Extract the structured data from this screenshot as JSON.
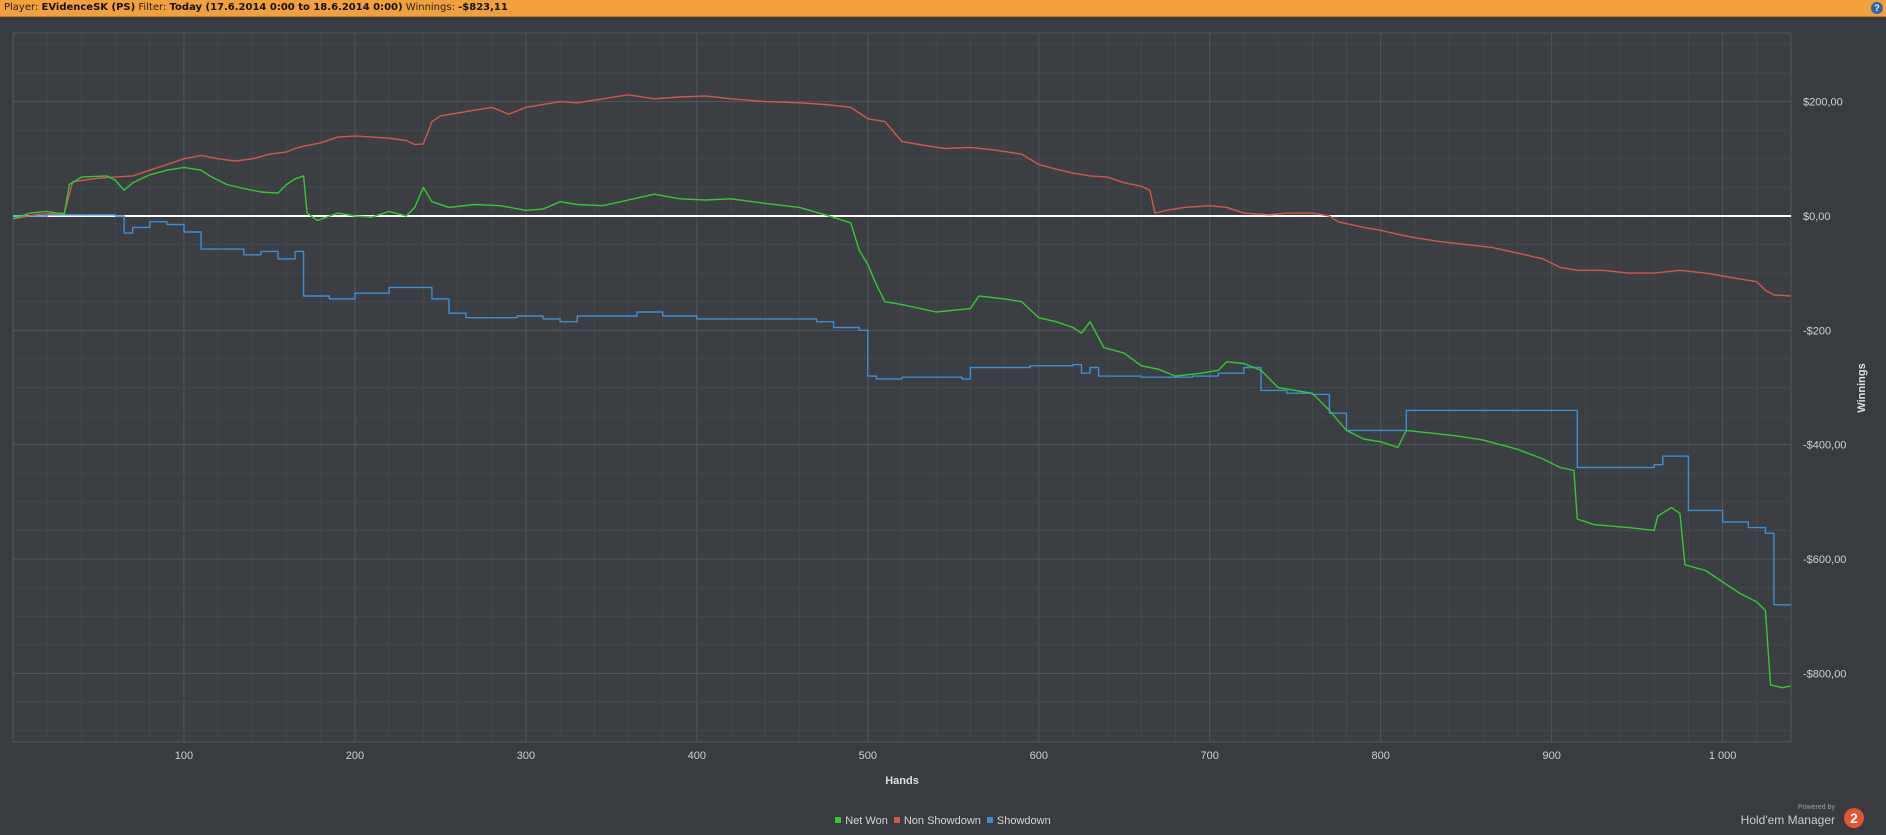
{
  "header": {
    "player_label": "Player:",
    "player_value": "EVidenceSK (PS)",
    "filter_label": "Filter:",
    "filter_value": "Today (17.6.2014 0:00 to 18.6.2014 0:00)",
    "winnings_label": "Winnings:",
    "winnings_value": "-$823,11",
    "help_icon": "?"
  },
  "brand": {
    "powered_by": "Powered by",
    "name": "Hold'em Manager",
    "logo": "2"
  },
  "colors": {
    "net_won": "#2ecc2e",
    "non_showdown": "#d9534f",
    "showdown": "#3a8fd6",
    "background": "#383b3f",
    "zero_line": "#ffffff"
  },
  "chart_data": {
    "type": "line",
    "title": "",
    "xlabel": "Hands",
    "ylabel": "Winnings",
    "xlim": [
      0,
      1040
    ],
    "ylim": [
      -920,
      320
    ],
    "grid": true,
    "legend_position": "bottom",
    "x_ticks": [
      100,
      200,
      300,
      400,
      500,
      600,
      700,
      800,
      900,
      1000
    ],
    "x_tick_labels": [
      "100",
      "200",
      "300",
      "400",
      "500",
      "600",
      "700",
      "800",
      "900",
      "1 000"
    ],
    "y_ticks": [
      200,
      0,
      -200,
      -400,
      -600,
      -800
    ],
    "y_tick_labels": [
      "$200,00",
      "$0,00",
      "-$200",
      "-$400,00",
      "-$600,00",
      "-$800,00"
    ],
    "series": [
      {
        "name": "Net Won",
        "step": false,
        "points": [
          [
            0,
            -5
          ],
          [
            10,
            5
          ],
          [
            20,
            8
          ],
          [
            30,
            3
          ],
          [
            33,
            55
          ],
          [
            40,
            68
          ],
          [
            55,
            70
          ],
          [
            60,
            62
          ],
          [
            65,
            45
          ],
          [
            70,
            58
          ],
          [
            80,
            72
          ],
          [
            90,
            80
          ],
          [
            100,
            85
          ],
          [
            110,
            80
          ],
          [
            115,
            70
          ],
          [
            125,
            55
          ],
          [
            135,
            48
          ],
          [
            145,
            42
          ],
          [
            155,
            40
          ],
          [
            160,
            55
          ],
          [
            165,
            65
          ],
          [
            170,
            70
          ],
          [
            172,
            5
          ],
          [
            178,
            -8
          ],
          [
            190,
            5
          ],
          [
            200,
            0
          ],
          [
            210,
            -2
          ],
          [
            220,
            8
          ],
          [
            230,
            0
          ],
          [
            235,
            15
          ],
          [
            240,
            50
          ],
          [
            245,
            25
          ],
          [
            255,
            15
          ],
          [
            270,
            20
          ],
          [
            285,
            18
          ],
          [
            300,
            10
          ],
          [
            310,
            12
          ],
          [
            320,
            25
          ],
          [
            330,
            20
          ],
          [
            345,
            18
          ],
          [
            360,
            28
          ],
          [
            375,
            38
          ],
          [
            390,
            30
          ],
          [
            405,
            28
          ],
          [
            420,
            30
          ],
          [
            440,
            22
          ],
          [
            460,
            15
          ],
          [
            475,
            2
          ],
          [
            490,
            -12
          ],
          [
            495,
            -60
          ],
          [
            500,
            -85
          ],
          [
            505,
            -120
          ],
          [
            510,
            -150
          ],
          [
            520,
            -155
          ],
          [
            540,
            -168
          ],
          [
            560,
            -162
          ],
          [
            565,
            -140
          ],
          [
            580,
            -145
          ],
          [
            590,
            -150
          ],
          [
            600,
            -178
          ],
          [
            610,
            -185
          ],
          [
            620,
            -195
          ],
          [
            625,
            -205
          ],
          [
            630,
            -185
          ],
          [
            638,
            -230
          ],
          [
            650,
            -240
          ],
          [
            660,
            -262
          ],
          [
            670,
            -268
          ],
          [
            680,
            -280
          ],
          [
            695,
            -275
          ],
          [
            705,
            -270
          ],
          [
            710,
            -255
          ],
          [
            720,
            -258
          ],
          [
            730,
            -270
          ],
          [
            740,
            -300
          ],
          [
            750,
            -305
          ],
          [
            760,
            -310
          ],
          [
            770,
            -340
          ],
          [
            780,
            -375
          ],
          [
            790,
            -390
          ],
          [
            800,
            -395
          ],
          [
            810,
            -405
          ],
          [
            815,
            -375
          ],
          [
            830,
            -380
          ],
          [
            845,
            -385
          ],
          [
            860,
            -392
          ],
          [
            880,
            -408
          ],
          [
            895,
            -425
          ],
          [
            905,
            -440
          ],
          [
            913,
            -445
          ],
          [
            915,
            -530
          ],
          [
            925,
            -540
          ],
          [
            945,
            -545
          ],
          [
            960,
            -550
          ],
          [
            962,
            -525
          ],
          [
            970,
            -510
          ],
          [
            975,
            -520
          ],
          [
            978,
            -610
          ],
          [
            990,
            -620
          ],
          [
            1000,
            -640
          ],
          [
            1010,
            -660
          ],
          [
            1020,
            -675
          ],
          [
            1025,
            -690
          ],
          [
            1028,
            -820
          ],
          [
            1035,
            -825
          ],
          [
            1040,
            -822
          ]
        ]
      },
      {
        "name": "Non Showdown",
        "step": false,
        "points": [
          [
            0,
            -5
          ],
          [
            15,
            3
          ],
          [
            30,
            5
          ],
          [
            35,
            60
          ],
          [
            50,
            66
          ],
          [
            70,
            70
          ],
          [
            80,
            80
          ],
          [
            90,
            90
          ],
          [
            100,
            100
          ],
          [
            110,
            106
          ],
          [
            120,
            100
          ],
          [
            130,
            96
          ],
          [
            140,
            100
          ],
          [
            150,
            108
          ],
          [
            160,
            112
          ],
          [
            165,
            118
          ],
          [
            170,
            122
          ],
          [
            180,
            128
          ],
          [
            190,
            138
          ],
          [
            200,
            140
          ],
          [
            210,
            138
          ],
          [
            220,
            136
          ],
          [
            230,
            132
          ],
          [
            235,
            125
          ],
          [
            240,
            126
          ],
          [
            245,
            165
          ],
          [
            250,
            175
          ],
          [
            260,
            180
          ],
          [
            270,
            185
          ],
          [
            280,
            190
          ],
          [
            290,
            178
          ],
          [
            300,
            190
          ],
          [
            310,
            195
          ],
          [
            320,
            200
          ],
          [
            330,
            198
          ],
          [
            345,
            205
          ],
          [
            360,
            212
          ],
          [
            375,
            205
          ],
          [
            390,
            208
          ],
          [
            405,
            210
          ],
          [
            420,
            205
          ],
          [
            440,
            200
          ],
          [
            460,
            198
          ],
          [
            475,
            195
          ],
          [
            490,
            190
          ],
          [
            495,
            180
          ],
          [
            500,
            170
          ],
          [
            510,
            165
          ],
          [
            520,
            130
          ],
          [
            530,
            125
          ],
          [
            545,
            118
          ],
          [
            560,
            120
          ],
          [
            575,
            115
          ],
          [
            590,
            108
          ],
          [
            600,
            90
          ],
          [
            610,
            82
          ],
          [
            620,
            75
          ],
          [
            630,
            70
          ],
          [
            640,
            68
          ],
          [
            650,
            58
          ],
          [
            660,
            52
          ],
          [
            665,
            45
          ],
          [
            668,
            5
          ],
          [
            675,
            10
          ],
          [
            685,
            15
          ],
          [
            700,
            18
          ],
          [
            710,
            15
          ],
          [
            720,
            5
          ],
          [
            735,
            2
          ],
          [
            745,
            5
          ],
          [
            760,
            5
          ],
          [
            770,
            0
          ],
          [
            775,
            -10
          ],
          [
            790,
            -20
          ],
          [
            800,
            -25
          ],
          [
            810,
            -32
          ],
          [
            820,
            -38
          ],
          [
            835,
            -45
          ],
          [
            850,
            -50
          ],
          [
            865,
            -55
          ],
          [
            880,
            -65
          ],
          [
            895,
            -75
          ],
          [
            905,
            -90
          ],
          [
            915,
            -95
          ],
          [
            930,
            -95
          ],
          [
            945,
            -100
          ],
          [
            960,
            -100
          ],
          [
            975,
            -95
          ],
          [
            990,
            -100
          ],
          [
            1000,
            -105
          ],
          [
            1010,
            -110
          ],
          [
            1020,
            -115
          ],
          [
            1025,
            -130
          ],
          [
            1030,
            -138
          ],
          [
            1040,
            -140
          ]
        ]
      },
      {
        "name": "Showdown",
        "step": true,
        "points": [
          [
            0,
            0
          ],
          [
            20,
            2
          ],
          [
            60,
            0
          ],
          [
            65,
            -30
          ],
          [
            70,
            -20
          ],
          [
            80,
            -10
          ],
          [
            90,
            -15
          ],
          [
            100,
            -28
          ],
          [
            110,
            -58
          ],
          [
            135,
            -68
          ],
          [
            145,
            -62
          ],
          [
            155,
            -75
          ],
          [
            165,
            -62
          ],
          [
            170,
            -140
          ],
          [
            185,
            -145
          ],
          [
            200,
            -135
          ],
          [
            220,
            -125
          ],
          [
            245,
            -145
          ],
          [
            255,
            -170
          ],
          [
            265,
            -178
          ],
          [
            295,
            -175
          ],
          [
            310,
            -180
          ],
          [
            320,
            -185
          ],
          [
            330,
            -175
          ],
          [
            345,
            -175
          ],
          [
            365,
            -168
          ],
          [
            380,
            -175
          ],
          [
            400,
            -180
          ],
          [
            440,
            -180
          ],
          [
            470,
            -185
          ],
          [
            480,
            -195
          ],
          [
            495,
            -200
          ],
          [
            500,
            -280
          ],
          [
            505,
            -285
          ],
          [
            520,
            -282
          ],
          [
            555,
            -285
          ],
          [
            560,
            -265
          ],
          [
            595,
            -262
          ],
          [
            620,
            -260
          ],
          [
            625,
            -275
          ],
          [
            630,
            -265
          ],
          [
            635,
            -280
          ],
          [
            660,
            -282
          ],
          [
            690,
            -280
          ],
          [
            705,
            -275
          ],
          [
            720,
            -265
          ],
          [
            730,
            -305
          ],
          [
            745,
            -310
          ],
          [
            760,
            -312
          ],
          [
            770,
            -345
          ],
          [
            780,
            -375
          ],
          [
            810,
            -375
          ],
          [
            815,
            -340
          ],
          [
            900,
            -340
          ],
          [
            915,
            -440
          ],
          [
            960,
            -435
          ],
          [
            965,
            -420
          ],
          [
            980,
            -515
          ],
          [
            990,
            -515
          ],
          [
            1000,
            -535
          ],
          [
            1015,
            -545
          ],
          [
            1025,
            -555
          ],
          [
            1030,
            -680
          ],
          [
            1040,
            -680
          ]
        ]
      }
    ]
  }
}
